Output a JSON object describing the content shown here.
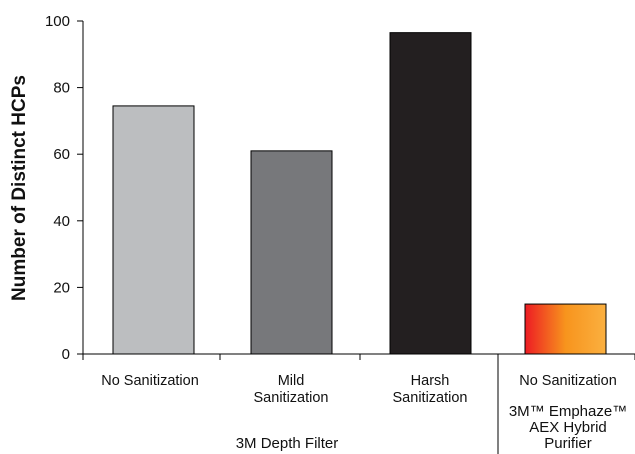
{
  "chart_data": {
    "type": "bar",
    "title": "",
    "xlabel": "",
    "ylabel": "Number of Distinct HCPs",
    "ylim": [
      0,
      100
    ],
    "yticks": [
      0,
      20,
      40,
      60,
      80,
      100
    ],
    "grid": false,
    "categories": [
      {
        "lines": [
          "No  Sanitization"
        ],
        "value": 74.5,
        "color": "#bcbec0"
      },
      {
        "lines": [
          "Mild",
          "Sanitization"
        ],
        "value": 61,
        "color": "#77787b"
      },
      {
        "lines": [
          "Harsh",
          "Sanitization"
        ],
        "value": 96.5,
        "color": "#231f20"
      },
      {
        "lines": [
          "No Sanitization"
        ],
        "value": 15,
        "gradient": [
          "#ed1c24",
          "#f7941d",
          "#fbb040"
        ]
      }
    ],
    "groups": [
      {
        "label_lines": [
          "3M Depth Filter"
        ]
      },
      {
        "label_lines": [
          "3M™ Emphaze™",
          "AEX Hybrid",
          "Purifier"
        ]
      }
    ]
  }
}
